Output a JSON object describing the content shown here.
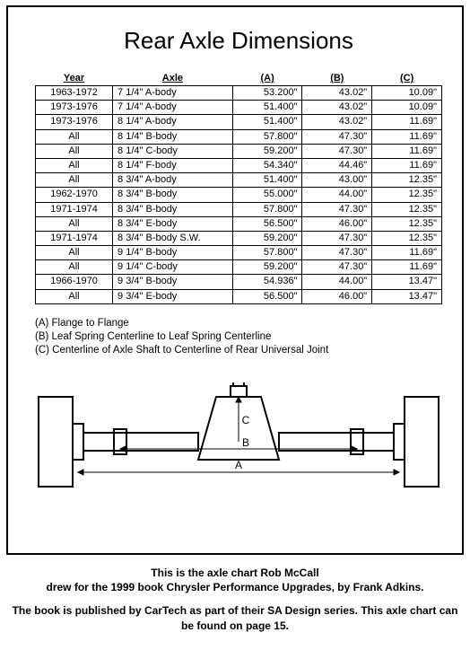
{
  "title": "Rear Axle Dimensions",
  "table": {
    "headers": [
      "Year",
      "Axle",
      "(A)",
      "(B)",
      "(C)"
    ],
    "rows": [
      [
        "1963-1972",
        "7 1/4\" A-body",
        "53.200\"",
        "43.02\"",
        "10.09\""
      ],
      [
        "1973-1976",
        "7 1/4\" A-body",
        "51.400\"",
        "43.02\"",
        "10.09\""
      ],
      [
        "1973-1976",
        "8 1/4\" A-body",
        "51.400\"",
        "43.02\"",
        "11.69\""
      ],
      [
        "All",
        "8 1/4\" B-body",
        "57.800\"",
        "47.30\"",
        "11.69\""
      ],
      [
        "All",
        "8 1/4\" C-body",
        "59.200\"",
        "47.30\"",
        "11.69\""
      ],
      [
        "All",
        "8 1/4\" F-body",
        "54.340\"",
        "44.46\"",
        "11.69\""
      ],
      [
        "All",
        "8 3/4\" A-body",
        "51.400\"",
        "43.00\"",
        "12.35\""
      ],
      [
        "1962-1970",
        "8 3/4\" B-body",
        "55.000\"",
        "44.00\"",
        "12.35\""
      ],
      [
        "1971-1974",
        "8 3/4\" B-body",
        "57.800\"",
        "47.30\"",
        "12.35\""
      ],
      [
        "All",
        "8 3/4\" E-body",
        "56.500\"",
        "46.00\"",
        "12.35\""
      ],
      [
        "1971-1974",
        "8 3/4\" B-body S.W.",
        "59.200\"",
        "47.30\"",
        "12.35\""
      ],
      [
        "All",
        "9 1/4\" B-body",
        "57.800\"",
        "47.30\"",
        "11.69\""
      ],
      [
        "All",
        "9 1/4\" C-body",
        "59.200\"",
        "47.30\"",
        "11.69\""
      ],
      [
        "1966-1970",
        "9 3/4\" B-body",
        "54.936\"",
        "44.00\"",
        "13.47\""
      ],
      [
        "All",
        "9 3/4\" E-body",
        "56.500\"",
        "46.00\"",
        "13.47\""
      ]
    ]
  },
  "legend": {
    "a": "(A) Flange to Flange",
    "b": "(B) Leaf Spring Centerline to Leaf Spring Centerline",
    "c": "(C) Centerline of Axle Shaft to Centerline of Rear Universal Joint"
  },
  "diagram": {
    "labels": {
      "a": "A",
      "b": "B",
      "c": "C"
    },
    "colors": {
      "stroke": "#000000",
      "fill": "#ffffff"
    }
  },
  "caption": {
    "line1a": "This is the axle chart Rob McCall",
    "line1b": "drew for the 1999 book Chrysler Performance Upgrades, by Frank Adkins.",
    "line2": "The book is published by CarTech as part of their SA Design series.  This axle chart can be found on page 15."
  }
}
